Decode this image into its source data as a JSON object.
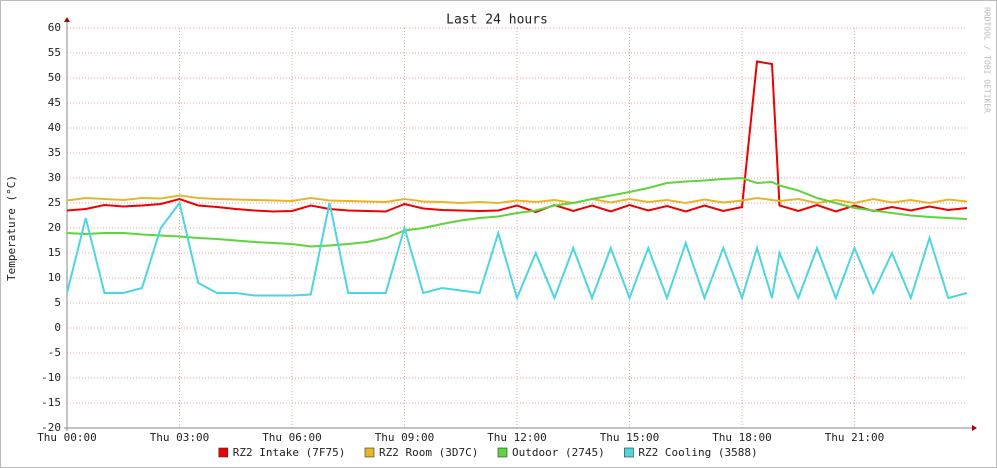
{
  "chart_data": {
    "type": "line",
    "title": "Last 24 hours",
    "y_label": "Temperature (°C)",
    "watermark": "RRDTOOL / TOBI OETIKER",
    "x": [
      0,
      0.5,
      1,
      1.5,
      2,
      2.5,
      3,
      3.5,
      4,
      4.5,
      5,
      5.5,
      6,
      6.5,
      7,
      7.5,
      8,
      8.5,
      9,
      9.5,
      10,
      10.5,
      11,
      11.5,
      12,
      12.5,
      13,
      13.5,
      14,
      14.5,
      15,
      15.5,
      16,
      16.5,
      17,
      17.5,
      18,
      18.4,
      18.8,
      19,
      19.5,
      20,
      20.5,
      21,
      21.5,
      22,
      22.5,
      23,
      23.5,
      24
    ],
    "xlim": [
      0,
      24
    ],
    "xticks": [
      {
        "value": 0,
        "label": "Thu 00:00"
      },
      {
        "value": 3,
        "label": "Thu 03:00"
      },
      {
        "value": 6,
        "label": "Thu 06:00"
      },
      {
        "value": 9,
        "label": "Thu 09:00"
      },
      {
        "value": 12,
        "label": "Thu 12:00"
      },
      {
        "value": 15,
        "label": "Thu 15:00"
      },
      {
        "value": 18,
        "label": "Thu 18:00"
      },
      {
        "value": 21,
        "label": "Thu 21:00"
      }
    ],
    "ylim": [
      -20,
      60
    ],
    "yticks": [
      -20,
      -15,
      -10,
      -5,
      0,
      5,
      10,
      15,
      20,
      25,
      30,
      35,
      40,
      45,
      50,
      55,
      60
    ],
    "grid": true,
    "series": [
      {
        "name": "RZ2 Intake (7F75)",
        "color": "#ee0000",
        "values": [
          23.5,
          23.8,
          24.6,
          24.3,
          24.5,
          24.8,
          25.8,
          24.5,
          24.2,
          23.8,
          23.5,
          23.3,
          23.4,
          24.5,
          23.8,
          23.5,
          23.4,
          23.3,
          24.8,
          23.9,
          23.6,
          23.5,
          23.4,
          23.5,
          24.5,
          23.2,
          24.6,
          23.4,
          24.5,
          23.3,
          24.6,
          23.5,
          24.4,
          23.3,
          24.5,
          23.4,
          24.2,
          53.3,
          52.8,
          24.5,
          23.4,
          24.6,
          23.3,
          24.5,
          23.4,
          24.2,
          23.5,
          24.3,
          23.6,
          24.0
        ]
      },
      {
        "name": "RZ2 Room (3D7C)",
        "color": "#e5b62b",
        "values": [
          25.5,
          26,
          25.8,
          25.6,
          26,
          25.9,
          26.5,
          26,
          25.8,
          25.7,
          25.6,
          25.5,
          25.4,
          26,
          25.5,
          25.4,
          25.3,
          25.2,
          25.8,
          25.3,
          25.2,
          25,
          25.2,
          25,
          25.5,
          25.2,
          25.6,
          25,
          25.8,
          25.1,
          25.8,
          25.2,
          25.6,
          25,
          25.7,
          25.1,
          25.5,
          26,
          25.6,
          25.4,
          25.8,
          25,
          25.6,
          25,
          25.8,
          25.1,
          25.6,
          25,
          25.7,
          25.3
        ]
      },
      {
        "name": "Outdoor (2745)",
        "color": "#5fd43d",
        "values": [
          19,
          18.8,
          19,
          19,
          18.7,
          18.5,
          18.3,
          18,
          17.8,
          17.5,
          17.2,
          17,
          16.8,
          16.3,
          16.5,
          16.8,
          17.2,
          18,
          19.5,
          20,
          20.8,
          21.5,
          22,
          22.3,
          23,
          23.5,
          24.5,
          25,
          25.8,
          26.5,
          27.2,
          28,
          29,
          29.3,
          29.5,
          29.8,
          30,
          29,
          29.2,
          28.5,
          27.5,
          26,
          25,
          24,
          23.5,
          23,
          22.5,
          22.2,
          22,
          21.8
        ]
      },
      {
        "name": "RZ2 Cooling (3588)",
        "color": "#4dd5e0",
        "values": [
          7,
          22,
          7,
          7,
          8,
          20,
          25,
          9,
          7,
          7,
          6.5,
          6.5,
          6.5,
          6.7,
          25,
          7,
          7,
          7,
          20,
          7,
          8,
          7.5,
          7,
          19,
          6,
          15,
          6,
          16,
          6,
          16,
          6,
          16,
          6,
          17,
          6,
          16,
          6,
          16,
          6,
          15,
          6,
          16,
          6,
          16,
          7,
          15,
          6,
          18,
          6,
          7
        ]
      }
    ]
  }
}
